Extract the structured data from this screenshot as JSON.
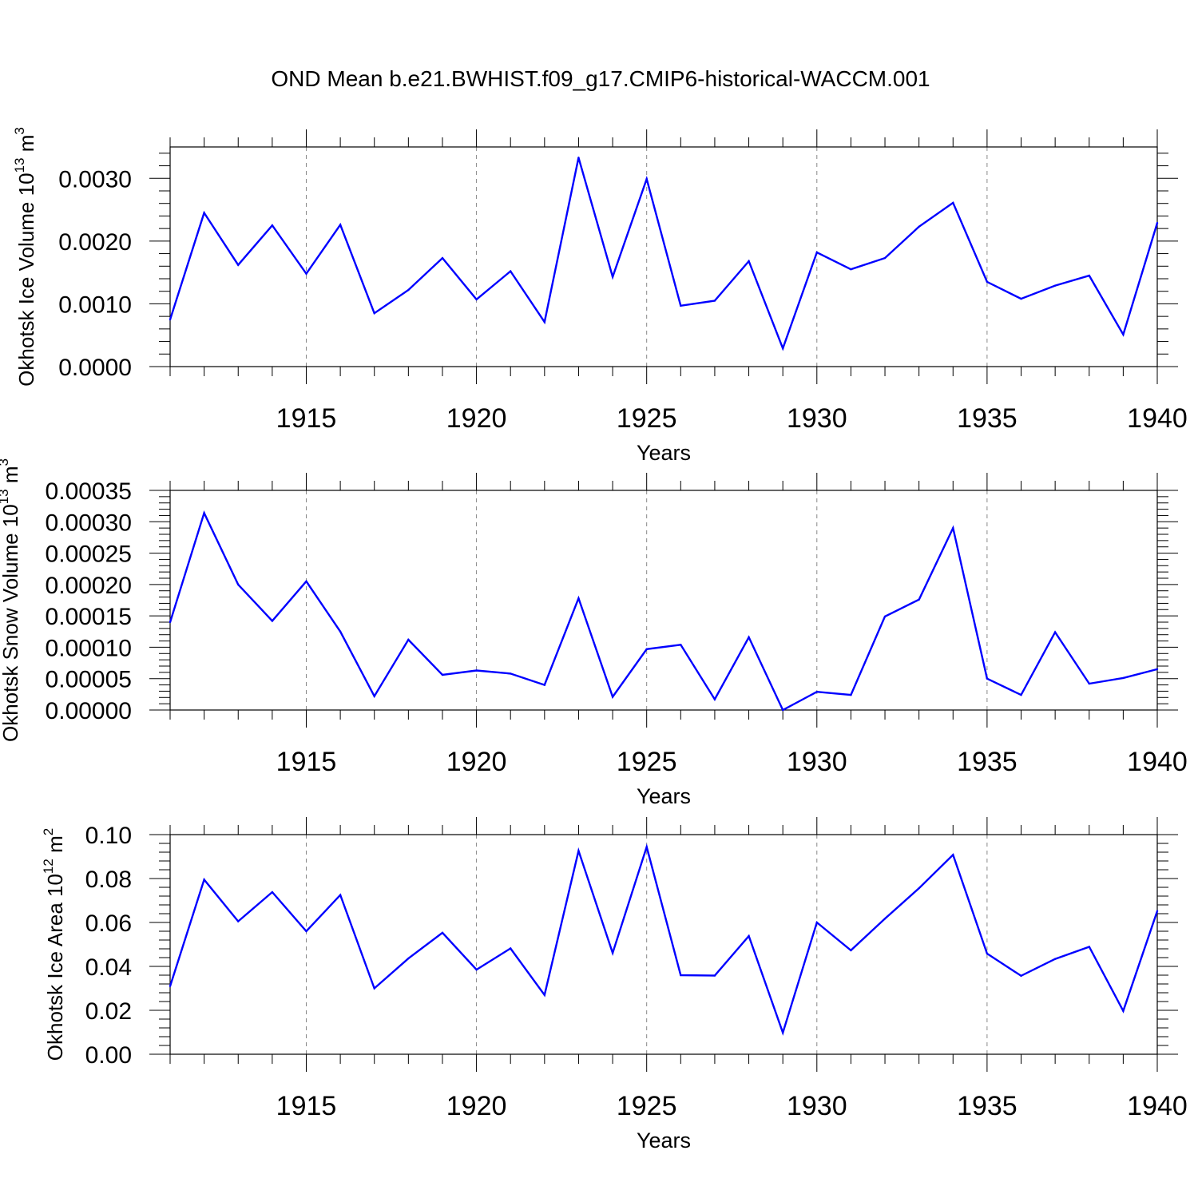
{
  "figure": {
    "title": "OND Mean b.e21.BWHIST.f09_g17.CMIP6-historical-WACCM.001",
    "line_color": "#0000ff",
    "grid_color": "#888888",
    "grid": "vertical dashed at major x ticks"
  },
  "chart_data": [
    {
      "type": "line",
      "xlabel": "Years",
      "ylabel": {
        "text": "Okhotsk Ice Volume 10",
        "sup": "13",
        "unit": " m",
        "unit_sup": "3"
      },
      "xlim": [
        1911,
        1940
      ],
      "ylim": [
        0,
        0.0035
      ],
      "x_ticks": [
        1915,
        1920,
        1925,
        1930,
        1935,
        1940
      ],
      "x_tick_labels": [
        "1915",
        "1920",
        "1925",
        "1930",
        "1935",
        "1940"
      ],
      "y_ticks": [
        0,
        0.001,
        0.002,
        0.003
      ],
      "y_tick_labels": [
        "0.0000",
        "0.0010",
        "0.0020",
        "0.0030"
      ],
      "series": [
        {
          "x": [
            1911,
            1912,
            1913,
            1914,
            1915,
            1916,
            1917,
            1918,
            1919,
            1920,
            1921,
            1922,
            1923,
            1924,
            1925,
            1926,
            1927,
            1928,
            1929,
            1930,
            1931,
            1932,
            1933,
            1934,
            1935,
            1936,
            1937,
            1938,
            1939,
            1940
          ],
          "values": [
            0.00075,
            0.00245,
            0.00162,
            0.00225,
            0.00148,
            0.00226,
            0.00085,
            0.00122,
            0.00173,
            0.00107,
            0.00152,
            0.00071,
            0.00333,
            0.00143,
            0.00299,
            0.00097,
            0.00105,
            0.00168,
            0.00029,
            0.00182,
            0.00155,
            0.00173,
            0.00223,
            0.00261,
            0.00135,
            0.00108,
            0.00129,
            0.00145,
            0.00051,
            0.00229
          ]
        }
      ]
    },
    {
      "type": "line",
      "xlabel": "Years",
      "ylabel": {
        "text": "Okhotsk Snow Volume 10",
        "sup": "13",
        "unit": " m",
        "unit_sup": "3"
      },
      "xlim": [
        1911,
        1940
      ],
      "ylim": [
        0,
        0.00035
      ],
      "x_ticks": [
        1915,
        1920,
        1925,
        1930,
        1935,
        1940
      ],
      "x_tick_labels": [
        "1915",
        "1920",
        "1925",
        "1930",
        "1935",
        "1940"
      ],
      "y_ticks": [
        0,
        5e-05,
        0.0001,
        0.00015,
        0.0002,
        0.00025,
        0.0003,
        0.00035
      ],
      "y_tick_labels": [
        "0.00000",
        "0.00005",
        "0.00010",
        "0.00015",
        "0.00020",
        "0.00025",
        "0.00030",
        "0.00035"
      ],
      "series": [
        {
          "x": [
            1911,
            1912,
            1913,
            1914,
            1915,
            1916,
            1917,
            1918,
            1919,
            1920,
            1921,
            1922,
            1923,
            1924,
            1925,
            1926,
            1927,
            1928,
            1929,
            1930,
            1931,
            1932,
            1933,
            1934,
            1935,
            1936,
            1937,
            1938,
            1939,
            1940
          ],
          "values": [
            0.00014,
            0.000314,
            0.0002,
            0.000142,
            0.000205,
            0.000125,
            2.2e-05,
            0.000112,
            5.6e-05,
            6.3e-05,
            5.8e-05,
            4e-05,
            0.000178,
            2.1e-05,
            9.7e-05,
            0.000104,
            1.7e-05,
            0.000116,
            0.0,
            2.9e-05,
            2.4e-05,
            0.000149,
            0.000176,
            0.00029,
            5e-05,
            2.4e-05,
            0.000124,
            4.2e-05,
            5.1e-05,
            6.5e-05
          ]
        }
      ]
    },
    {
      "type": "line",
      "xlabel": "Years",
      "ylabel": {
        "text": "Okhotsk Ice Area 10",
        "sup": "12",
        "unit": " m",
        "unit_sup": "2"
      },
      "xlim": [
        1911,
        1940
      ],
      "ylim": [
        0,
        0.1
      ],
      "x_ticks": [
        1915,
        1920,
        1925,
        1930,
        1935,
        1940
      ],
      "x_tick_labels": [
        "1915",
        "1920",
        "1925",
        "1930",
        "1935",
        "1940"
      ],
      "y_ticks": [
        0,
        0.02,
        0.04,
        0.06,
        0.08,
        0.1
      ],
      "y_tick_labels": [
        "0.00",
        "0.02",
        "0.04",
        "0.06",
        "0.08",
        "0.10"
      ],
      "series": [
        {
          "x": [
            1911,
            1912,
            1913,
            1914,
            1915,
            1916,
            1917,
            1918,
            1919,
            1920,
            1921,
            1922,
            1923,
            1924,
            1925,
            1926,
            1927,
            1928,
            1929,
            1930,
            1931,
            1932,
            1933,
            1934,
            1935,
            1936,
            1937,
            1938,
            1939,
            1940
          ],
          "values": [
            0.031,
            0.0795,
            0.0605,
            0.0738,
            0.056,
            0.0725,
            0.03,
            0.0436,
            0.0553,
            0.0385,
            0.0482,
            0.027,
            0.0926,
            0.0461,
            0.0944,
            0.036,
            0.0358,
            0.0538,
            0.0098,
            0.06,
            0.0473,
            0.0617,
            0.0756,
            0.0908,
            0.0458,
            0.0357,
            0.0434,
            0.0489,
            0.0197,
            0.0652
          ]
        }
      ]
    }
  ]
}
